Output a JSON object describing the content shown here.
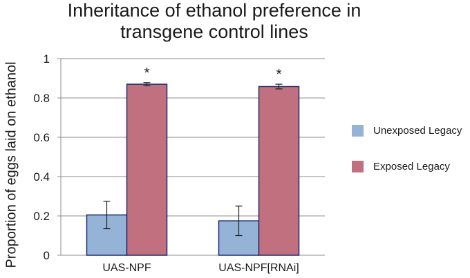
{
  "chart_data": {
    "type": "bar",
    "title": "Inheritance of ethanol preference in transgene control lines",
    "title_lines": [
      "Inheritance of ethanol preference in",
      "transgene control lines"
    ],
    "xlabel": "",
    "ylabel": "Proportion of eggs laid on ethanol",
    "ylim": [
      0,
      1
    ],
    "yticks": [
      "0",
      "0.2",
      "0.4",
      "0.6",
      "0.8",
      "1"
    ],
    "categories": [
      "UAS-NPF",
      "UAS-NPF[RNAi]"
    ],
    "series": [
      {
        "name": "Unexposed Legacy",
        "color": "#95b3d7",
        "values": [
          0.205,
          0.175
        ],
        "errors": [
          0.07,
          0.075
        ],
        "markers": [
          "",
          ""
        ]
      },
      {
        "name": "Exposed Legacy",
        "color": "#c0707f",
        "values": [
          0.87,
          0.858
        ],
        "errors": [
          0.008,
          0.012
        ],
        "markers": [
          "*",
          "*"
        ]
      }
    ],
    "grid": true,
    "legend": "right"
  }
}
